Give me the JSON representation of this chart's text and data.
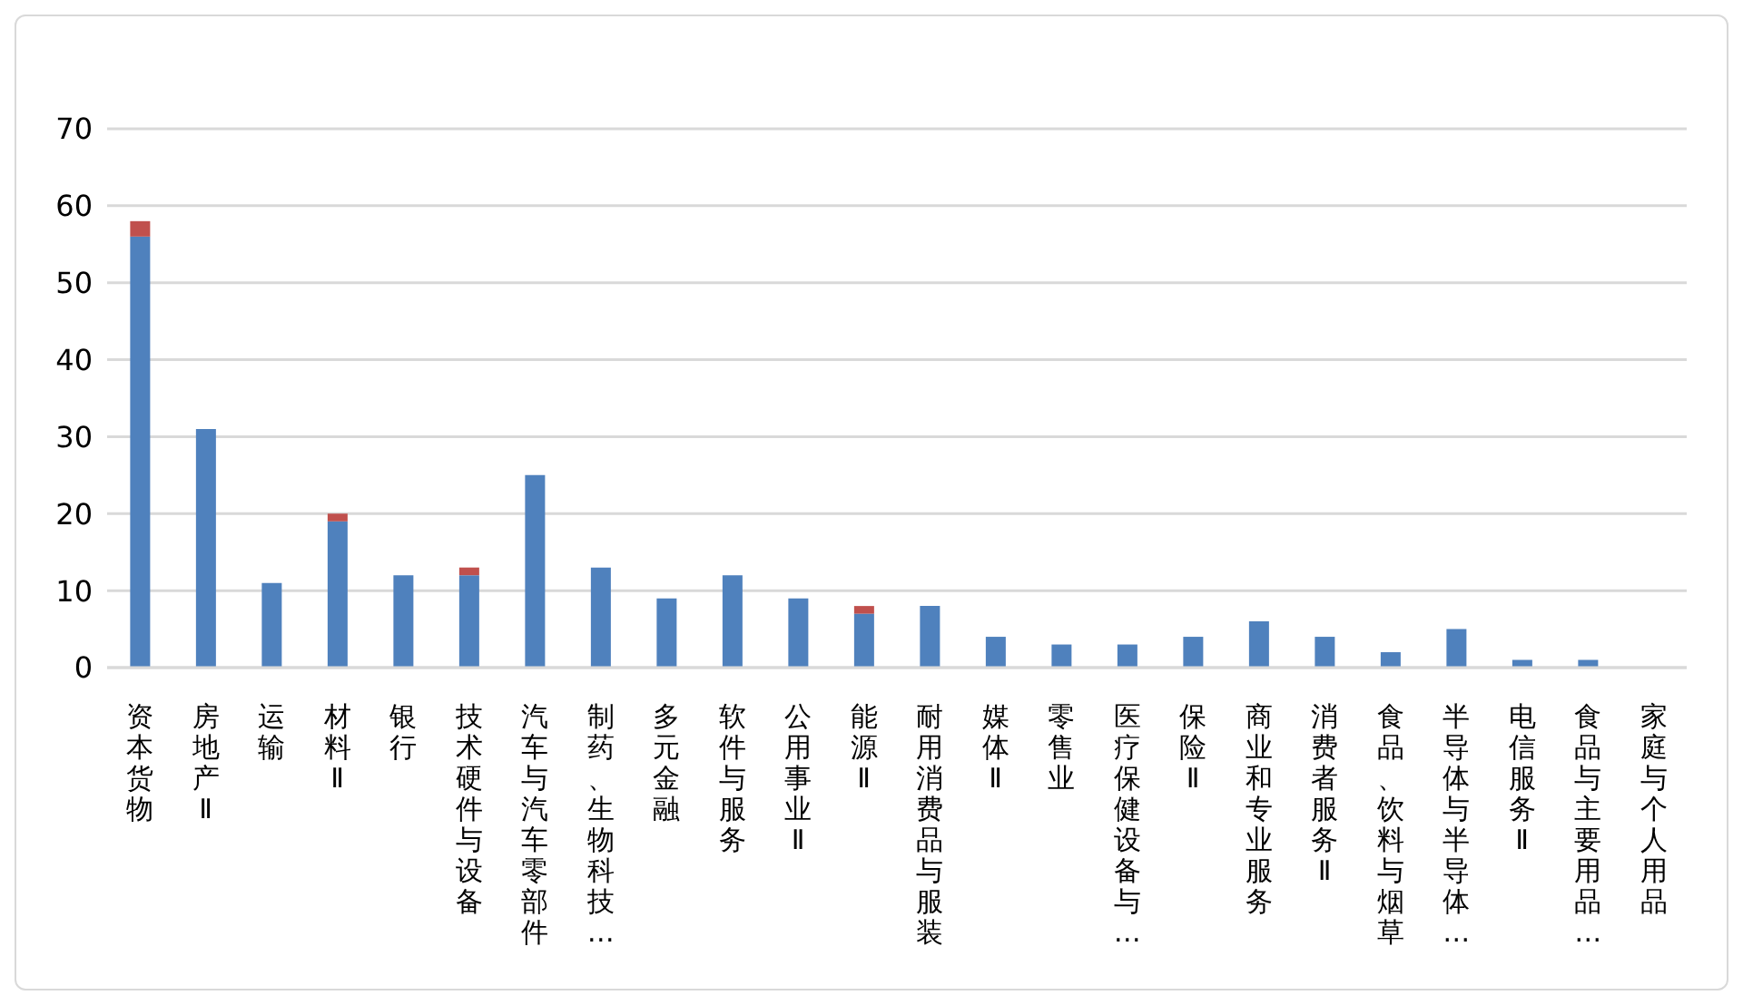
{
  "chart_data": {
    "type": "bar",
    "stacked": true,
    "categories": [
      "资本货物",
      "房地产Ⅱ",
      "运输",
      "材料Ⅱ",
      "银行",
      "技术硬件与设备",
      "汽车与汽车零部件",
      "制药、生物科技…",
      "多元金融",
      "软件与服务",
      "公用事业Ⅱ",
      "能源Ⅱ",
      "耐用消费品与服装",
      "媒体Ⅱ",
      "零售业",
      "医疗保健设备与…",
      "保险Ⅱ",
      "商业和专业服务",
      "消费者服务Ⅱ",
      "食品、饮料与烟草",
      "半导体与半导体…",
      "电信服务Ⅱ",
      "食品与主要用品…",
      "家庭与个人用品"
    ],
    "series": [
      {
        "color": "#4f81bd",
        "values": [
          56,
          31,
          11,
          19,
          12,
          12,
          25,
          13,
          9,
          12,
          9,
          7,
          8,
          4,
          3,
          3,
          4,
          6,
          4,
          2,
          5,
          1,
          1,
          0
        ]
      },
      {
        "color": "#c0504d",
        "values": [
          2,
          0,
          0,
          1,
          0,
          1,
          0,
          0,
          0,
          0,
          0,
          1,
          0,
          0,
          0,
          0,
          0,
          0,
          0,
          0,
          0,
          0,
          0,
          0
        ]
      }
    ],
    "ylim": [
      0,
      70
    ],
    "yticks": [
      0,
      10,
      20,
      30,
      40,
      50,
      60,
      70
    ],
    "grid": "y",
    "legend": false
  }
}
